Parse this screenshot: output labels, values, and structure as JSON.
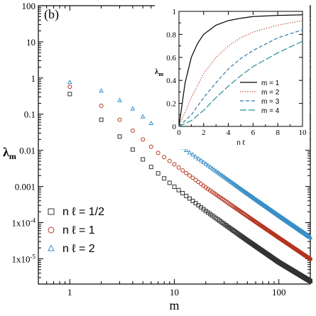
{
  "chart_data": [
    {
      "type": "scatter",
      "panel_label": "(b)",
      "xlabel": "m",
      "ylabel": "λm",
      "x_scale": "log",
      "y_scale": "log",
      "xlim": [
        0.5,
        200
      ],
      "ylim": [
        2e-06,
        100
      ],
      "x_ticks": [
        {
          "v": 1,
          "label": "1"
        },
        {
          "v": 10,
          "label": "10"
        },
        {
          "v": 100,
          "label": "100"
        }
      ],
      "y_ticks": [
        {
          "v": 100,
          "label": "100"
        },
        {
          "v": 10,
          "label": "10"
        },
        {
          "v": 1,
          "label": "1"
        },
        {
          "v": 0.1,
          "label": "0.1"
        },
        {
          "v": 0.01,
          "label": "0.01"
        },
        {
          "v": 0.001,
          "label": "0.001"
        },
        {
          "v": 0.0001,
          "label": "1x10-4"
        },
        {
          "v": 1e-05,
          "label": "1x10-5"
        }
      ],
      "legend_position": "bottom-left",
      "series": [
        {
          "name": "n ℓ = 1/2",
          "marker": "square",
          "color": "#333333",
          "x_range": [
            1,
            200
          ],
          "x_points": [
            1,
            2,
            3,
            4,
            5,
            7,
            10,
            20,
            50,
            100,
            200
          ],
          "y_points": [
            0.36,
            0.07,
            0.024,
            0.0105,
            0.0056,
            0.0023,
            0.00098,
            0.00021,
            3.2e-05,
            8e-06,
            2.4e-06
          ]
        },
        {
          "name": "n ℓ = 1",
          "marker": "circle",
          "color": "#b5341f",
          "x_range": [
            1,
            200
          ],
          "x_points": [
            1,
            2,
            3,
            4,
            5,
            7,
            10,
            20,
            50,
            100,
            200
          ],
          "y_points": [
            0.57,
            0.17,
            0.07,
            0.035,
            0.02,
            0.0085,
            0.0041,
            0.00094,
            0.00015,
            3.8e-05,
            9.8e-06
          ]
        },
        {
          "name": "n ℓ = 2",
          "marker": "triangle",
          "color": "#3a8fc7",
          "x_range": [
            1,
            200
          ],
          "x_points": [
            1,
            2,
            3,
            4,
            5,
            7,
            10,
            20,
            50,
            100,
            200
          ],
          "y_points": [
            0.76,
            0.44,
            0.24,
            0.14,
            0.085,
            0.039,
            0.017,
            0.0042,
            0.00063,
            0.000155,
            3.9e-05
          ]
        }
      ]
    },
    {
      "type": "line",
      "xlabel": "n ℓ",
      "ylabel": "λm",
      "xlim": [
        0,
        10
      ],
      "ylim": [
        0,
        1
      ],
      "x_ticks": [
        0,
        2,
        4,
        6,
        8,
        10
      ],
      "y_ticks": [
        0,
        0.2,
        0.4,
        0.6,
        0.8,
        1
      ],
      "legend_position": "bottom-right",
      "series": [
        {
          "name": "m = 1",
          "style": "solid",
          "color": "#000000",
          "x": [
            0,
            0.5,
            1,
            1.5,
            2,
            3,
            4,
            5,
            6,
            8,
            10
          ],
          "y": [
            0,
            0.38,
            0.6,
            0.72,
            0.8,
            0.88,
            0.92,
            0.94,
            0.955,
            0.965,
            0.97
          ]
        },
        {
          "name": "m = 2",
          "style": "dotted",
          "color": "#b5341f",
          "x": [
            0,
            1,
            2,
            3,
            4,
            5,
            6,
            8,
            10
          ],
          "y": [
            0,
            0.25,
            0.46,
            0.6,
            0.7,
            0.77,
            0.82,
            0.88,
            0.92
          ]
        },
        {
          "name": "m = 3",
          "style": "dashed",
          "color": "#2f78a8",
          "x": [
            0,
            1,
            2,
            3,
            4,
            5,
            6,
            8,
            10
          ],
          "y": [
            0,
            0.1,
            0.25,
            0.38,
            0.5,
            0.59,
            0.66,
            0.77,
            0.84
          ]
        },
        {
          "name": "m = 4",
          "style": "longdash",
          "color": "#2a8f8f",
          "x": [
            0,
            1,
            2,
            3,
            4,
            5,
            6,
            8,
            10
          ],
          "y": [
            0,
            0.05,
            0.14,
            0.25,
            0.35,
            0.44,
            0.52,
            0.64,
            0.74
          ]
        }
      ]
    }
  ]
}
